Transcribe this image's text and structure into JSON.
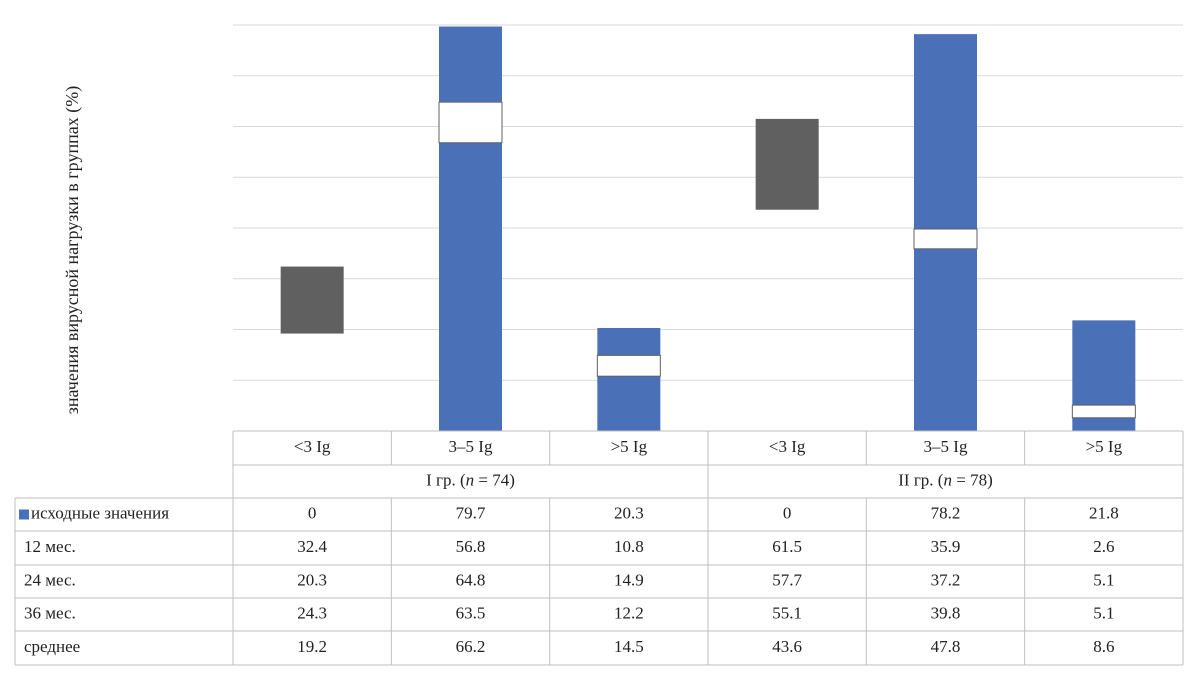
{
  "chart_data": {
    "type": "bar",
    "ylabel": "значения вирусной нагрузки в группах (%)",
    "ylim": [
      0,
      80
    ],
    "grid": true,
    "groups": [
      {
        "label": "I гр. (n = 74)",
        "label_prefix": "I гр. (",
        "label_n": "n",
        "label_suffix": " = 74)"
      },
      {
        "label": "II гр. (n = 78)",
        "label_prefix": "II гр. (",
        "label_n": "n",
        "label_suffix": " = 78)"
      }
    ],
    "categories": [
      "<3 Ig",
      "3–5 Ig",
      ">5 Ig",
      "<3 Ig",
      "3–5 Ig",
      ">5 Ig"
    ],
    "series": [
      {
        "name": "исходные значения",
        "values": [
          0,
          79.7,
          20.3,
          0,
          78.2,
          21.8
        ],
        "color": "#4a70b8",
        "in_legend": true
      },
      {
        "name": "12 мес.",
        "values": [
          32.4,
          56.8,
          10.8,
          61.5,
          35.9,
          2.6
        ]
      },
      {
        "name": "24 мес.",
        "values": [
          20.3,
          64.8,
          14.9,
          57.7,
          37.2,
          5.1
        ]
      },
      {
        "name": "36 мес.",
        "values": [
          24.3,
          63.5,
          12.2,
          55.1,
          39.8,
          5.1
        ]
      },
      {
        "name": "среднее",
        "values": [
          19.2,
          66.2,
          14.5,
          43.6,
          47.8,
          8.6
        ]
      }
    ],
    "colors": {
      "primary": "#4a70b8",
      "range": "#606060",
      "highlight": "#ffffff",
      "grid": "#d9d9d9",
      "table_border": "#bfbfbf"
    }
  }
}
